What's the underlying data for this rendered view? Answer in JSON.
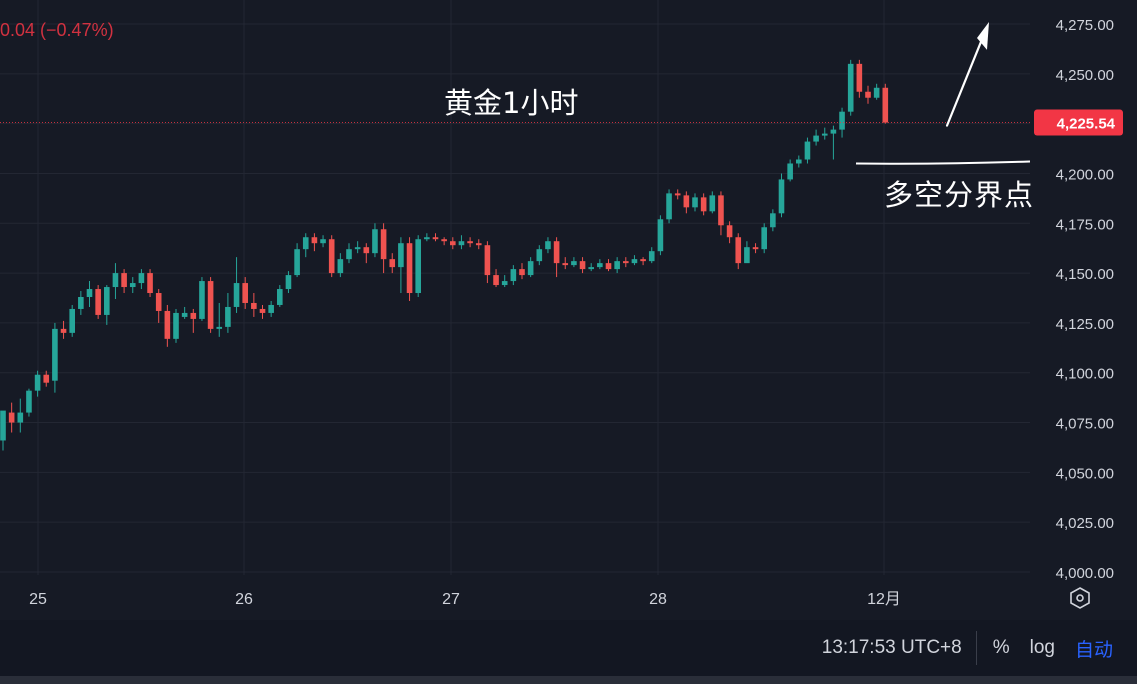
{
  "header": {
    "change_text": "0.04 (−0.47%)"
  },
  "annotations": {
    "title": "黄金1小时",
    "level_label": "多空分界点"
  },
  "price_tag": {
    "value": "4,225.54",
    "color": "#f23645"
  },
  "footer": {
    "clock": "13:17:53 UTC+8",
    "percent_label": "%",
    "log_label": "log",
    "auto_label": "自动"
  },
  "colors": {
    "up": "#26a69a",
    "down": "#ef5350",
    "background": "#161a25",
    "grid": "#232733",
    "axis_text": "#d1d4dc",
    "accent": "#2962ff"
  },
  "icons": {
    "settings": "hexagon-settings-icon"
  },
  "chart_data": {
    "type": "candlestick",
    "title": "黄金1小时",
    "ylim": [
      4000,
      4275
    ],
    "y_ticks": [
      4000,
      4025,
      4050,
      4075,
      4100,
      4125,
      4150,
      4175,
      4200,
      4225,
      4250,
      4275
    ],
    "y_tick_labels": [
      "4,000.00",
      "4,025.00",
      "4,050.00",
      "4,075.00",
      "4,100.00",
      "4,125.00",
      "4,150.00",
      "4,175.00",
      "4,200.00",
      "4,225.00",
      "4,250.00",
      "4,275.00"
    ],
    "x_tick_labels": [
      "25",
      "26",
      "27",
      "28",
      "12月"
    ],
    "last_price": 4225.54,
    "grid": true,
    "candles": [
      [
        4066,
        4081,
        4061,
        4080
      ],
      [
        4080,
        4075,
        4070,
        4085
      ],
      [
        4075,
        4080,
        4070,
        4087
      ],
      [
        4080,
        4091,
        4078,
        4092
      ],
      [
        4091,
        4099,
        4088,
        4101
      ],
      [
        4099,
        4095,
        4093,
        4101
      ],
      [
        4096,
        4122,
        4090,
        4125
      ],
      [
        4122,
        4120,
        4117,
        4126
      ],
      [
        4120,
        4132,
        4118,
        4134
      ],
      [
        4132,
        4138,
        4129,
        4141
      ],
      [
        4138,
        4142,
        4133,
        4146
      ],
      [
        4142,
        4129,
        4127,
        4144
      ],
      [
        4129,
        4143,
        4124,
        4144
      ],
      [
        4143,
        4150,
        4137,
        4155
      ],
      [
        4150,
        4143,
        4140,
        4152
      ],
      [
        4143,
        4145,
        4140,
        4148
      ],
      [
        4145,
        4150,
        4142,
        4152
      ],
      [
        4150,
        4140,
        4138,
        4152
      ],
      [
        4140,
        4131,
        4125,
        4142
      ],
      [
        4131,
        4117,
        4113,
        4134
      ],
      [
        4117,
        4130,
        4115,
        4132
      ],
      [
        4128,
        4130,
        4127,
        4133
      ],
      [
        4130,
        4127,
        4120,
        4132
      ],
      [
        4127,
        4146,
        4126,
        4148
      ],
      [
        4146,
        4122,
        4120,
        4148
      ],
      [
        4122,
        4123,
        4118,
        4135
      ],
      [
        4123,
        4133,
        4120,
        4140
      ],
      [
        4133,
        4145,
        4130,
        4158
      ],
      [
        4145,
        4135,
        4132,
        4148
      ],
      [
        4135,
        4132,
        4128,
        4140
      ],
      [
        4132,
        4130,
        4127,
        4134
      ],
      [
        4130,
        4134,
        4128,
        4136
      ],
      [
        4134,
        4142,
        4133,
        4144
      ],
      [
        4142,
        4149,
        4140,
        4151
      ],
      [
        4149,
        4162,
        4148,
        4165
      ],
      [
        4162,
        4168,
        4158,
        4170
      ],
      [
        4168,
        4165,
        4161,
        4170
      ],
      [
        4165,
        4167,
        4163,
        4169
      ],
      [
        4167,
        4150,
        4148,
        4169
      ],
      [
        4150,
        4157,
        4148,
        4160
      ],
      [
        4157,
        4162,
        4155,
        4165
      ],
      [
        4162,
        4163,
        4160,
        4166
      ],
      [
        4163,
        4160,
        4155,
        4165
      ],
      [
        4160,
        4172,
        4158,
        4175
      ],
      [
        4172,
        4157,
        4150,
        4175
      ],
      [
        4157,
        4153,
        4150,
        4160
      ],
      [
        4153,
        4165,
        4140,
        4168
      ],
      [
        4165,
        4140,
        4136,
        4168
      ],
      [
        4140,
        4167,
        4138,
        4169
      ],
      [
        4167,
        4168,
        4166,
        4170
      ],
      [
        4168,
        4167,
        4166,
        4170
      ],
      [
        4167,
        4166,
        4164,
        4168
      ],
      [
        4166,
        4164,
        4162,
        4168
      ],
      [
        4164,
        4166,
        4162,
        4169
      ],
      [
        4166,
        4165,
        4163,
        4168
      ],
      [
        4165,
        4164,
        4162,
        4167
      ],
      [
        4164,
        4149,
        4145,
        4166
      ],
      [
        4149,
        4144,
        4143,
        4152
      ],
      [
        4144,
        4146,
        4143,
        4149
      ],
      [
        4146,
        4152,
        4144,
        4154
      ],
      [
        4152,
        4149,
        4147,
        4155
      ],
      [
        4149,
        4156,
        4148,
        4158
      ],
      [
        4156,
        4162,
        4154,
        4164
      ],
      [
        4162,
        4166,
        4160,
        4168
      ],
      [
        4166,
        4155,
        4148,
        4168
      ],
      [
        4155,
        4154,
        4152,
        4158
      ],
      [
        4154,
        4156,
        4153,
        4158
      ],
      [
        4156,
        4152,
        4150,
        4158
      ],
      [
        4152,
        4153,
        4151,
        4155
      ],
      [
        4153,
        4155,
        4152,
        4157
      ],
      [
        4155,
        4152,
        4151,
        4157
      ],
      [
        4152,
        4156,
        4150,
        4158
      ],
      [
        4156,
        4155,
        4153,
        4158
      ],
      [
        4155,
        4157,
        4154,
        4159
      ],
      [
        4157,
        4156,
        4154,
        4158
      ],
      [
        4156,
        4161,
        4155,
        4163
      ],
      [
        4161,
        4177,
        4159,
        4179
      ],
      [
        4177,
        4190,
        4175,
        4192
      ],
      [
        4190,
        4189,
        4187,
        4192
      ],
      [
        4189,
        4183,
        4180,
        4191
      ],
      [
        4183,
        4188,
        4181,
        4190
      ],
      [
        4188,
        4181,
        4179,
        4190
      ],
      [
        4181,
        4189,
        4180,
        4191
      ],
      [
        4189,
        4174,
        4169,
        4191
      ],
      [
        4174,
        4168,
        4165,
        4176
      ],
      [
        4168,
        4155,
        4152,
        4170
      ],
      [
        4155,
        4163,
        4157,
        4166
      ],
      [
        4163,
        4162,
        4160,
        4165
      ],
      [
        4162,
        4173,
        4160,
        4175
      ],
      [
        4173,
        4180,
        4171,
        4182
      ],
      [
        4180,
        4197,
        4178,
        4200
      ],
      [
        4197,
        4205,
        4196,
        4207
      ],
      [
        4205,
        4207,
        4203,
        4209
      ],
      [
        4207,
        4216,
        4205,
        4218
      ],
      [
        4216,
        4219,
        4214,
        4222
      ],
      [
        4219,
        4220,
        4217,
        4223
      ],
      [
        4220,
        4222,
        4207,
        4224
      ],
      [
        4222,
        4231,
        4218,
        4233
      ],
      [
        4231,
        4255,
        4229,
        4257
      ],
      [
        4255,
        4241,
        4238,
        4257
      ],
      [
        4241,
        4238,
        4235,
        4244
      ],
      [
        4238,
        4243,
        4237,
        4245
      ],
      [
        4243,
        4225.54,
        4225,
        4245
      ]
    ]
  }
}
